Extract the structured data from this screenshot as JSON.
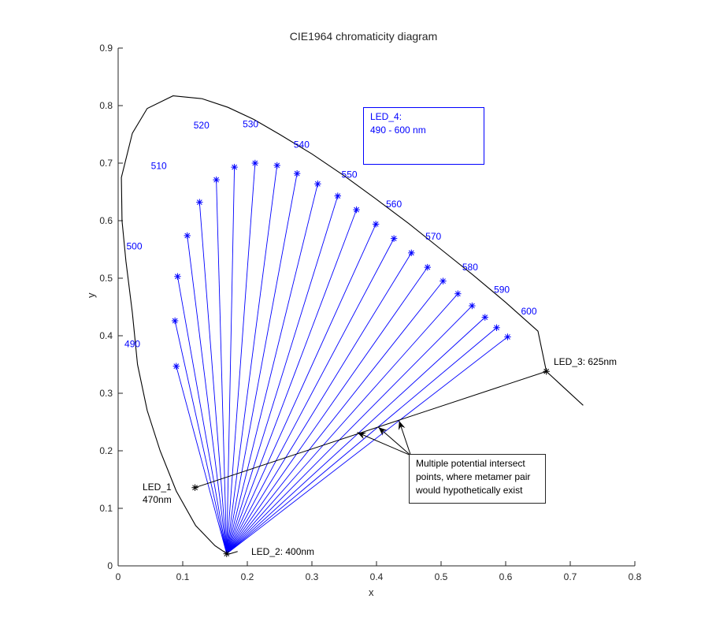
{
  "title": "CIE1964 chromaticity diagram",
  "chart_data": {
    "type": "line",
    "title": "CIE1964 chromaticity diagram",
    "xlabel": "x",
    "ylabel": "y",
    "xlim": [
      0,
      0.8
    ],
    "ylim": [
      0,
      0.9
    ],
    "x_ticks": [
      "0",
      "0.1",
      "0.2",
      "0.3",
      "0.4",
      "0.5",
      "0.6",
      "0.7",
      "0.8"
    ],
    "y_ticks": [
      "0",
      "0.1",
      "0.2",
      "0.3",
      "0.4",
      "0.5",
      "0.6",
      "0.7",
      "0.8",
      "0.9"
    ],
    "grid": false,
    "spectral_locus": [
      [
        0.185,
        0.025
      ],
      [
        0.17,
        0.02
      ],
      [
        0.15,
        0.035
      ],
      [
        0.12,
        0.07
      ],
      [
        0.09,
        0.13
      ],
      [
        0.065,
        0.2
      ],
      [
        0.045,
        0.27
      ],
      [
        0.03,
        0.35
      ],
      [
        0.022,
        0.44
      ],
      [
        0.012,
        0.53
      ],
      [
        0.006,
        0.6
      ],
      [
        0.005,
        0.675
      ],
      [
        0.022,
        0.752
      ],
      [
        0.045,
        0.795
      ],
      [
        0.085,
        0.817
      ],
      [
        0.13,
        0.812
      ],
      [
        0.17,
        0.797
      ],
      [
        0.21,
        0.776
      ],
      [
        0.25,
        0.75
      ],
      [
        0.3,
        0.716
      ],
      [
        0.35,
        0.678
      ],
      [
        0.4,
        0.637
      ],
      [
        0.45,
        0.595
      ],
      [
        0.5,
        0.55
      ],
      [
        0.55,
        0.505
      ],
      [
        0.6,
        0.458
      ],
      [
        0.65,
        0.408
      ],
      [
        0.663,
        0.338
      ],
      [
        0.69,
        0.31
      ],
      [
        0.72,
        0.279
      ]
    ],
    "wavelength_labels": [
      {
        "text": "490",
        "x": 0.022,
        "y": 0.38
      },
      {
        "text": "500",
        "x": 0.025,
        "y": 0.55
      },
      {
        "text": "510",
        "x": 0.063,
        "y": 0.69
      },
      {
        "text": "520",
        "x": 0.129,
        "y": 0.76
      },
      {
        "text": "530",
        "x": 0.205,
        "y": 0.762
      },
      {
        "text": "540",
        "x": 0.284,
        "y": 0.727
      },
      {
        "text": "550",
        "x": 0.358,
        "y": 0.675
      },
      {
        "text": "560",
        "x": 0.427,
        "y": 0.623
      },
      {
        "text": "570",
        "x": 0.488,
        "y": 0.567
      },
      {
        "text": "580",
        "x": 0.545,
        "y": 0.514
      },
      {
        "text": "590",
        "x": 0.594,
        "y": 0.475
      },
      {
        "text": "600",
        "x": 0.636,
        "y": 0.437
      }
    ],
    "led2_point": {
      "label": "LED_2: 400nm",
      "x": 0.168,
      "y": 0.021
    },
    "led1_point": {
      "label_line1": "LED_1",
      "label_line2": "470nm",
      "x": 0.119,
      "y": 0.136
    },
    "led3_point": {
      "label": "LED_3: 625nm",
      "x": 0.663,
      "y": 0.338
    },
    "led4_points": {
      "name": "LED_4: 490 - 600 nm",
      "x": [
        0.09,
        0.088,
        0.092,
        0.107,
        0.126,
        0.152,
        0.18,
        0.212,
        0.246,
        0.277,
        0.309,
        0.34,
        0.369,
        0.399,
        0.427,
        0.454,
        0.479,
        0.503,
        0.526,
        0.548,
        0.568,
        0.586,
        0.603
      ],
      "y": [
        0.347,
        0.426,
        0.503,
        0.574,
        0.632,
        0.671,
        0.693,
        0.7,
        0.696,
        0.682,
        0.664,
        0.643,
        0.619,
        0.594,
        0.569,
        0.544,
        0.519,
        0.495,
        0.473,
        0.452,
        0.432,
        0.414,
        0.398
      ]
    },
    "intersect_arrow_tips": [
      [
        0.37,
        0.232
      ],
      [
        0.403,
        0.241
      ],
      [
        0.435,
        0.252
      ]
    ],
    "arrow_origin": [
      0.453,
      0.192
    ],
    "colors": {
      "axes": "#262626",
      "locus": "#000000",
      "led4": "#0000ff"
    }
  },
  "annotations": {
    "led4_line1": "LED_4:",
    "led4_line2": "490 - 600 nm",
    "intersect_line1": "Multiple potential intersect",
    "intersect_line2": "points, where metamer pair",
    "intersect_line3": "would hypothetically exist"
  }
}
